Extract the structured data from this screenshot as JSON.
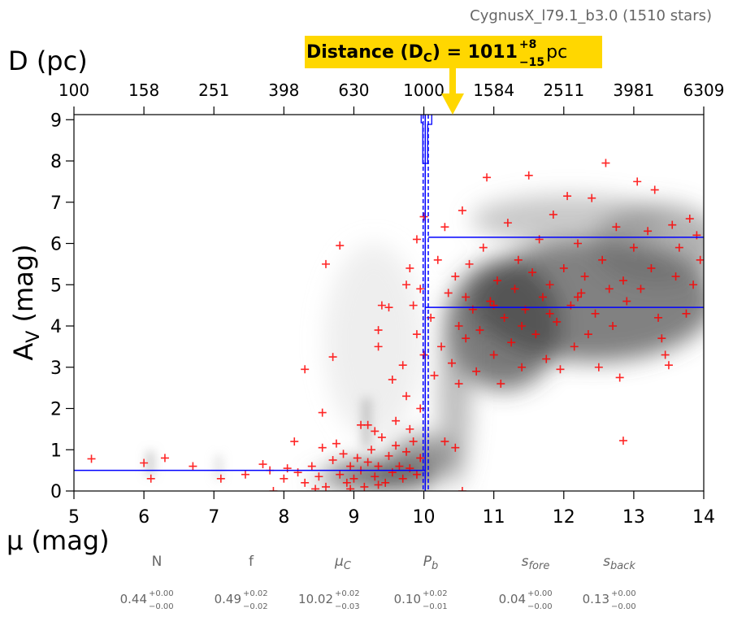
{
  "chart_data": {
    "type": "scatter",
    "title": "CygnusX_l79.1_b3.0 (1510 stars)",
    "annotation": {
      "prefix": "Distance (D",
      "sub": "C",
      "mid": ") = 1011",
      "plus": "+8",
      "minus": "−15",
      "unit": " pc"
    },
    "xlabel": "μ (mag)",
    "ylabel": "A",
    "ylabel_sub": "V",
    "ylabel_suffix": " (mag)",
    "top_axis_label": "D (pc)",
    "xlim": [
      5,
      14
    ],
    "ylim": [
      0,
      9.13
    ],
    "x_ticks": [
      "5",
      "6",
      "7",
      "8",
      "9",
      "10",
      "11",
      "12",
      "13",
      "14"
    ],
    "y_ticks": [
      "0",
      "1",
      "2",
      "3",
      "4",
      "5",
      "6",
      "7",
      "8",
      "9"
    ],
    "top_ticks": [
      "100",
      "158",
      "251",
      "398",
      "630",
      "1000",
      "1584",
      "2511",
      "3981",
      "6309"
    ],
    "series": [
      {
        "name": "stars",
        "marker": "+",
        "color": "#ff0000",
        "points": [
          [
            5.25,
            0.78
          ],
          [
            6.0,
            0.68
          ],
          [
            6.1,
            0.3
          ],
          [
            6.3,
            0.8
          ],
          [
            6.7,
            0.6
          ],
          [
            7.1,
            0.3
          ],
          [
            7.45,
            0.4
          ],
          [
            8.3,
            2.95
          ],
          [
            8.6,
            5.5
          ],
          [
            8.8,
            5.95
          ],
          [
            8.7,
            3.25
          ],
          [
            8.55,
            1.9
          ],
          [
            12.85,
            1.22
          ],
          [
            10.45,
            1.05
          ],
          [
            10.55,
            0.0
          ],
          [
            7.7,
            0.65
          ],
          [
            7.8,
            0.5
          ],
          [
            7.85,
            0.0
          ],
          [
            8.0,
            0.3
          ],
          [
            8.05,
            0.55
          ],
          [
            8.15,
            1.2
          ],
          [
            8.2,
            0.45
          ],
          [
            8.3,
            0.2
          ],
          [
            8.4,
            0.6
          ],
          [
            8.5,
            0.35
          ],
          [
            8.55,
            1.05
          ],
          [
            8.6,
            0.1
          ],
          [
            8.7,
            0.75
          ],
          [
            8.75,
            1.15
          ],
          [
            8.8,
            0.4
          ],
          [
            8.85,
            0.9
          ],
          [
            8.9,
            0.2
          ],
          [
            8.95,
            0.6
          ],
          [
            9.0,
            0.3
          ],
          [
            9.05,
            0.8
          ],
          [
            9.1,
            0.5
          ],
          [
            9.15,
            0.1
          ],
          [
            9.2,
            0.7
          ],
          [
            9.25,
            1.0
          ],
          [
            9.3,
            0.35
          ],
          [
            9.35,
            0.6
          ],
          [
            9.4,
            1.3
          ],
          [
            9.45,
            0.2
          ],
          [
            9.5,
            0.85
          ],
          [
            9.55,
            0.45
          ],
          [
            9.6,
            1.1
          ],
          [
            9.65,
            0.6
          ],
          [
            9.7,
            0.3
          ],
          [
            9.75,
            0.95
          ],
          [
            9.8,
            0.55
          ],
          [
            9.85,
            1.2
          ],
          [
            9.9,
            0.4
          ],
          [
            9.95,
            0.8
          ],
          [
            9.1,
            1.6
          ],
          [
            9.3,
            1.45
          ],
          [
            9.6,
            1.7
          ],
          [
            8.45,
            0.05
          ],
          [
            8.95,
            0.05
          ],
          [
            9.35,
            0.15
          ],
          [
            9.2,
            1.6
          ],
          [
            9.35,
            3.5
          ],
          [
            9.35,
            3.9
          ],
          [
            9.4,
            4.5
          ],
          [
            9.5,
            4.45
          ],
          [
            9.55,
            2.7
          ],
          [
            9.7,
            3.05
          ],
          [
            9.75,
            2.3
          ],
          [
            9.8,
            1.5
          ],
          [
            9.85,
            4.5
          ],
          [
            9.9,
            3.8
          ],
          [
            9.9,
            6.1
          ],
          [
            9.95,
            4.9
          ],
          [
            10.0,
            6.65
          ],
          [
            9.8,
            5.4
          ],
          [
            9.75,
            5.0
          ],
          [
            9.95,
            2.0
          ],
          [
            10.0,
            3.3
          ],
          [
            10.1,
            4.2
          ],
          [
            10.15,
            2.8
          ],
          [
            10.2,
            5.6
          ],
          [
            10.25,
            3.5
          ],
          [
            10.3,
            6.4
          ],
          [
            10.35,
            4.8
          ],
          [
            10.4,
            3.1
          ],
          [
            10.45,
            5.2
          ],
          [
            10.5,
            2.6
          ],
          [
            10.5,
            4.0
          ],
          [
            10.55,
            6.8
          ],
          [
            10.6,
            3.7
          ],
          [
            10.65,
            5.5
          ],
          [
            10.7,
            4.4
          ],
          [
            10.75,
            2.9
          ],
          [
            10.8,
            3.9
          ],
          [
            10.85,
            5.9
          ],
          [
            10.9,
            7.6
          ],
          [
            10.95,
            4.6
          ],
          [
            11.0,
            3.3
          ],
          [
            11.05,
            5.1
          ],
          [
            11.1,
            2.6
          ],
          [
            11.15,
            4.2
          ],
          [
            11.2,
            6.5
          ],
          [
            11.25,
            3.6
          ],
          [
            11.3,
            4.9
          ],
          [
            11.35,
            5.6
          ],
          [
            11.4,
            3.0
          ],
          [
            11.45,
            4.4
          ],
          [
            11.5,
            7.65
          ],
          [
            11.55,
            5.3
          ],
          [
            11.6,
            3.8
          ],
          [
            11.65,
            6.1
          ],
          [
            11.7,
            4.7
          ],
          [
            11.75,
            3.2
          ],
          [
            11.8,
            5.0
          ],
          [
            11.85,
            6.7
          ],
          [
            11.9,
            4.1
          ],
          [
            11.95,
            2.95
          ],
          [
            12.0,
            5.4
          ],
          [
            12.05,
            7.15
          ],
          [
            12.1,
            4.5
          ],
          [
            12.15,
            3.5
          ],
          [
            12.2,
            6.0
          ],
          [
            12.25,
            4.8
          ],
          [
            12.3,
            5.2
          ],
          [
            12.35,
            3.8
          ],
          [
            12.4,
            7.1
          ],
          [
            12.45,
            4.3
          ],
          [
            12.5,
            3.0
          ],
          [
            12.55,
            5.6
          ],
          [
            12.6,
            7.95
          ],
          [
            12.65,
            4.9
          ],
          [
            12.7,
            4.0
          ],
          [
            12.75,
            6.4
          ],
          [
            12.8,
            2.75
          ],
          [
            12.85,
            5.1
          ],
          [
            12.9,
            4.6
          ],
          [
            13.0,
            5.9
          ],
          [
            13.05,
            7.5
          ],
          [
            13.1,
            4.9
          ],
          [
            13.2,
            6.3
          ],
          [
            13.25,
            5.4
          ],
          [
            13.3,
            7.3
          ],
          [
            13.35,
            4.2
          ],
          [
            13.4,
            3.7
          ],
          [
            13.45,
            3.3
          ],
          [
            13.5,
            3.05
          ],
          [
            13.55,
            6.45
          ],
          [
            13.6,
            5.2
          ],
          [
            13.65,
            5.9
          ],
          [
            13.75,
            4.3
          ],
          [
            13.8,
            6.6
          ],
          [
            13.85,
            5.0
          ],
          [
            13.9,
            6.2
          ],
          [
            13.95,
            5.6
          ],
          [
            10.3,
            1.2
          ],
          [
            10.6,
            4.7
          ],
          [
            11.0,
            4.5
          ],
          [
            11.4,
            4.0
          ],
          [
            11.8,
            4.3
          ],
          [
            12.2,
            4.7
          ]
        ]
      }
    ],
    "model": {
      "color": "#0000ff",
      "mu_c": 10.02,
      "mu_c_lo": 9.99,
      "mu_c_hi": 10.04,
      "foreground_av": 0.5,
      "background_av": 4.45,
      "background_upper_av": 6.15
    },
    "parameters": [
      {
        "name": "N",
        "sub": "",
        "italic": false,
        "value": "0.44",
        "plus": "+0.00",
        "minus": "−0.00"
      },
      {
        "name": "f",
        "sub": "",
        "italic": false,
        "value": "0.49",
        "plus": "+0.02",
        "minus": "−0.02"
      },
      {
        "name": "μ",
        "sub": "C",
        "italic": true,
        "value": "10.02",
        "plus": "+0.02",
        "minus": "−0.03"
      },
      {
        "name": "P",
        "sub": "b",
        "italic": true,
        "value": "0.10",
        "plus": "+0.02",
        "minus": "−0.01"
      },
      {
        "name": "s",
        "sub": "fore",
        "italic": true,
        "value": "0.04",
        "plus": "+0.00",
        "minus": "−0.00"
      },
      {
        "name": "s",
        "sub": "back",
        "italic": true,
        "value": "0.13",
        "plus": "+0.00",
        "minus": "−0.00"
      }
    ],
    "colors": {
      "annotation_bg": "#ffd700",
      "points": "#ff0000",
      "model": "#0000ff",
      "param_text": "#666666"
    }
  }
}
